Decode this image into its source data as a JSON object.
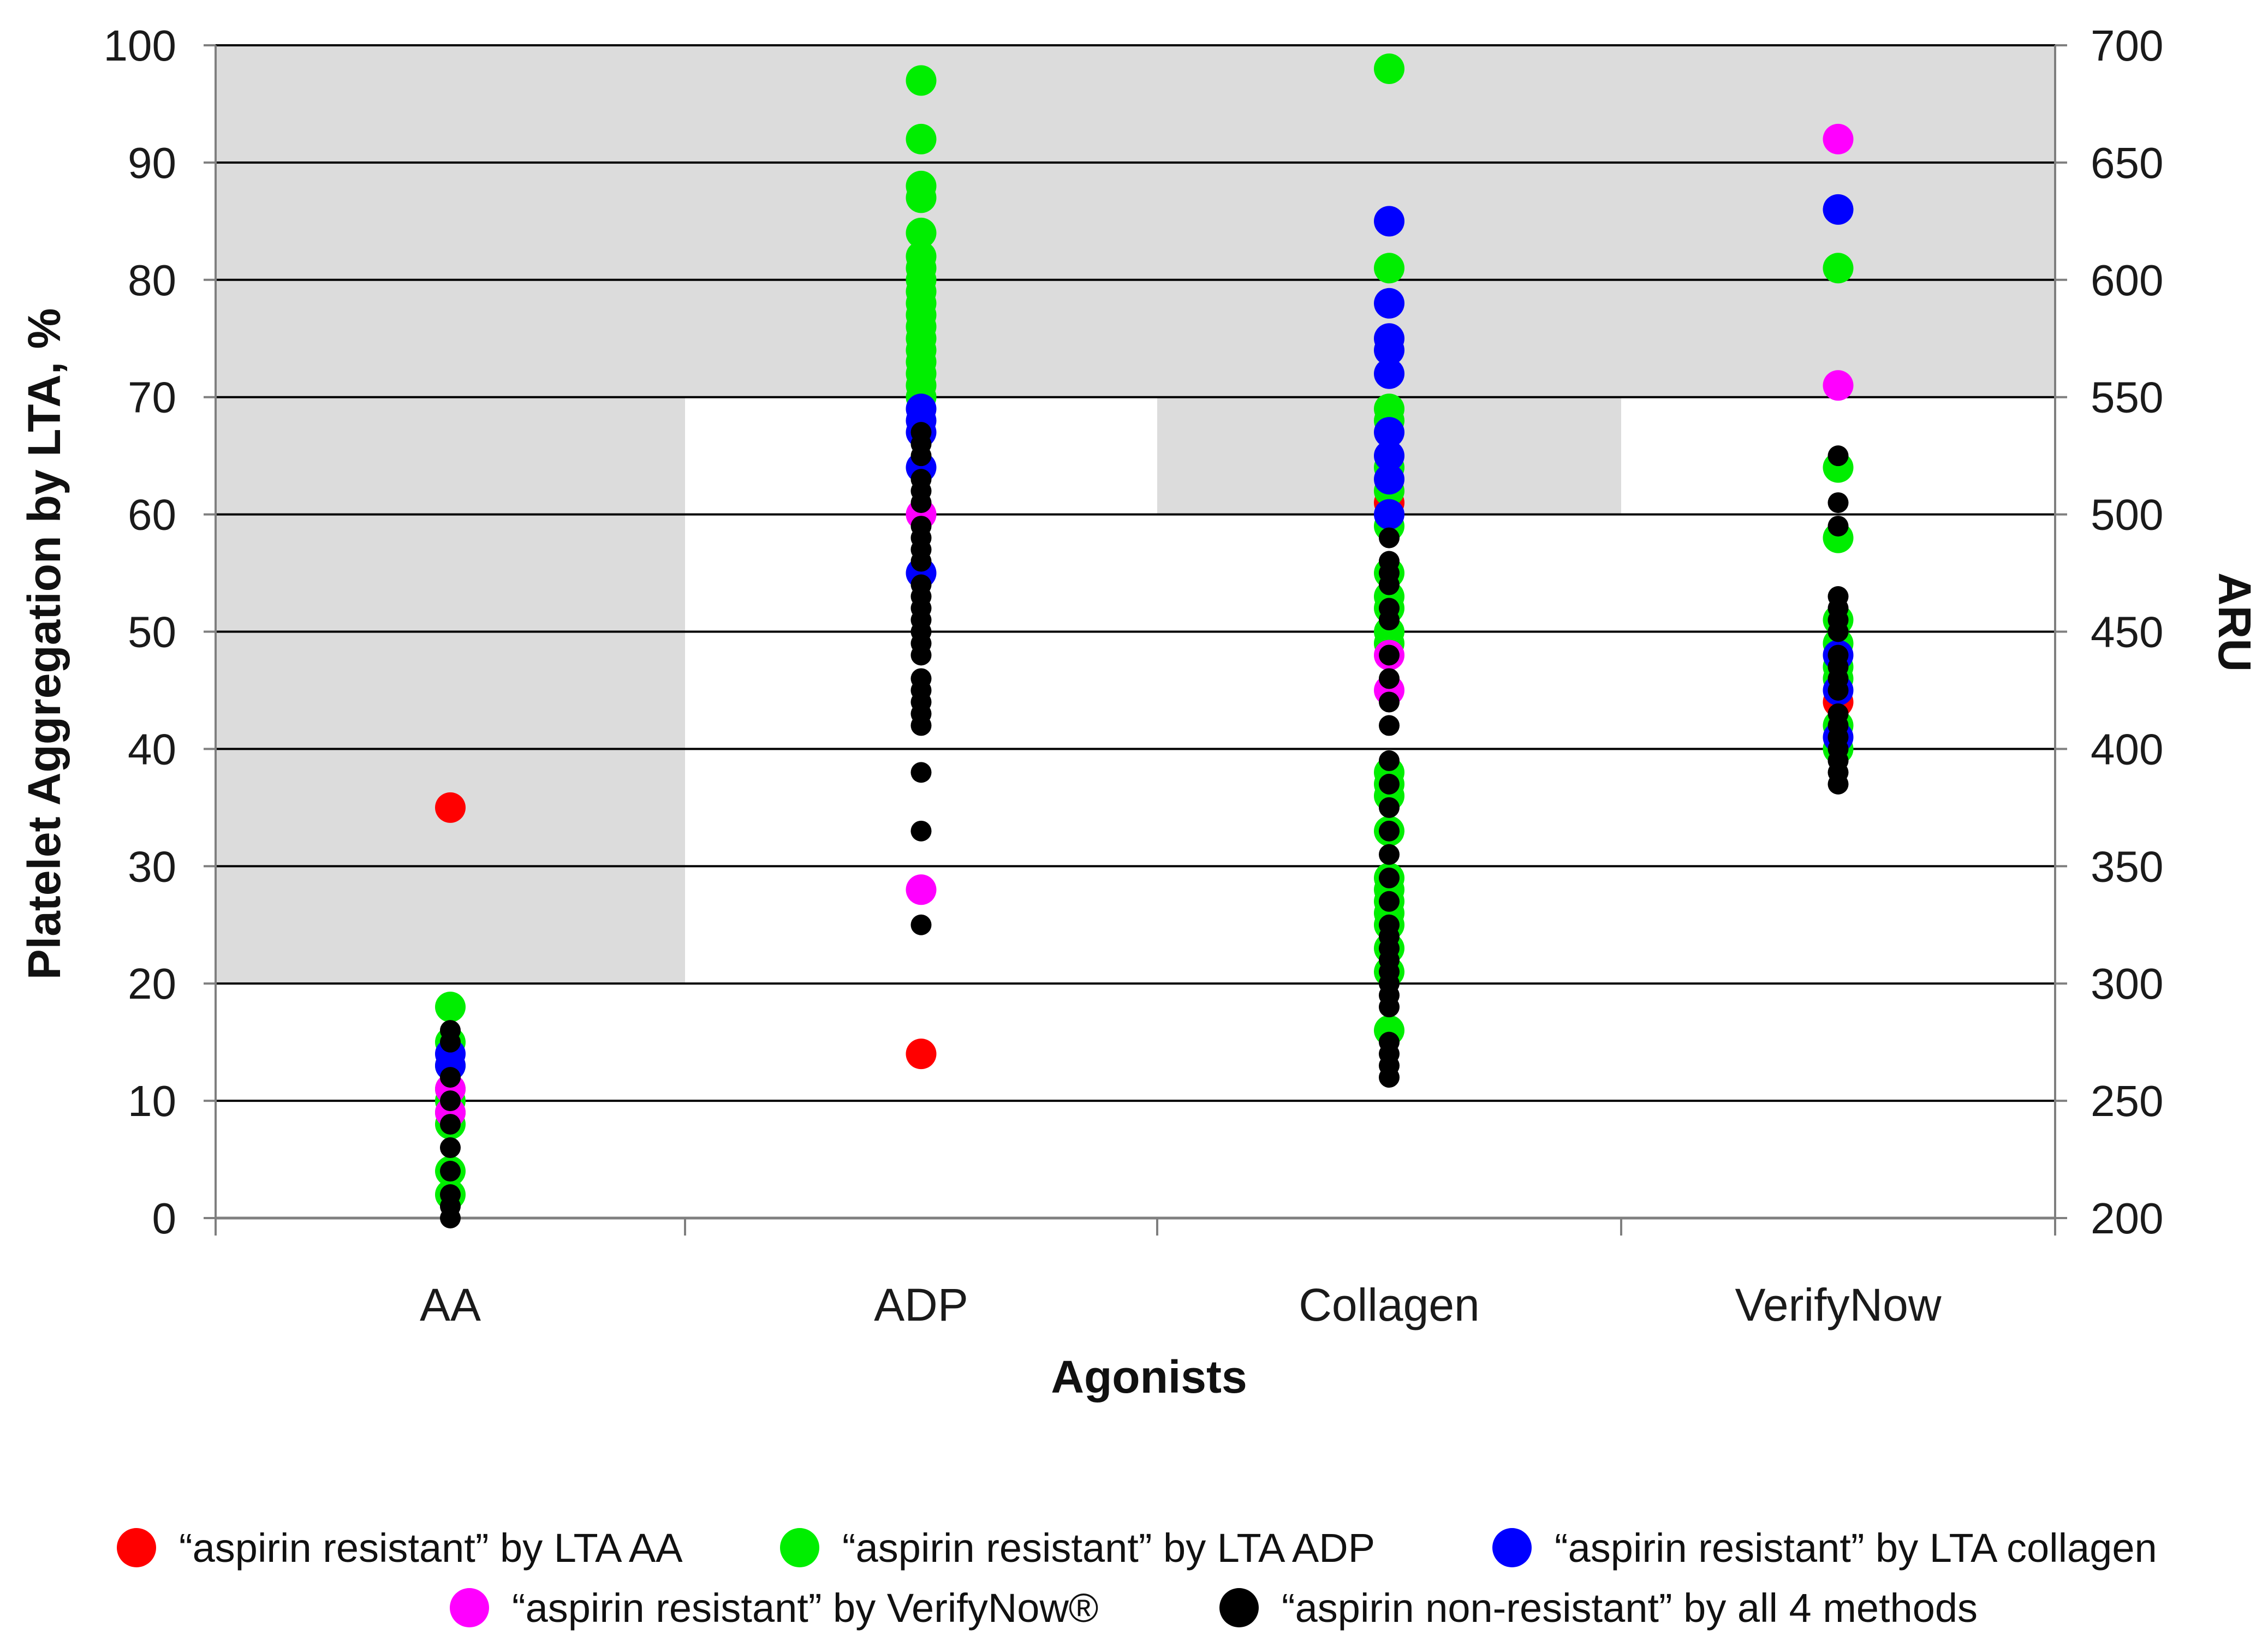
{
  "chart_data": {
    "type": "scatter",
    "title": "",
    "xlabel": "Agonists",
    "ylabel": "Platelet Aggregation by LTA, %",
    "y2label": "ARU",
    "categories": [
      "AA",
      "ADP",
      "Collagen",
      "VerifyNow"
    ],
    "ylim": [
      0,
      100
    ],
    "y2lim": [
      200,
      700
    ],
    "yticks": [
      0,
      10,
      20,
      30,
      40,
      50,
      60,
      70,
      80,
      90,
      100
    ],
    "y2ticks": [
      200,
      250,
      300,
      350,
      400,
      450,
      500,
      550,
      600,
      650,
      700
    ],
    "grid": true,
    "shaded_regions": [
      {
        "category": "AA",
        "from": 20,
        "to": 100
      },
      {
        "category": "ADP",
        "from": 70,
        "to": 100
      },
      {
        "category": "Collagen",
        "from": 60,
        "to": 100
      },
      {
        "category": "VerifyNow",
        "from": 70,
        "to": 100
      }
    ],
    "legend_position": "bottom",
    "series": [
      {
        "name": "“aspirin resistant” by LTA AA",
        "color": "#ff0000",
        "points": [
          {
            "category": "AA",
            "y": 35
          },
          {
            "category": "ADP",
            "y": 14
          },
          {
            "category": "Collagen",
            "y": 61
          },
          {
            "category": "VerifyNow",
            "y": 44
          }
        ]
      },
      {
        "name": "“aspirin resistant” by LTA ADP",
        "color": "#00ee00",
        "points": [
          {
            "category": "AA",
            "y": 18
          },
          {
            "category": "AA",
            "y": 15
          },
          {
            "category": "AA",
            "y": 13
          },
          {
            "category": "AA",
            "y": 11
          },
          {
            "category": "AA",
            "y": 10
          },
          {
            "category": "AA",
            "y": 9
          },
          {
            "category": "AA",
            "y": 8
          },
          {
            "category": "AA",
            "y": 4
          },
          {
            "category": "AA",
            "y": 2
          },
          {
            "category": "ADP",
            "y": 97
          },
          {
            "category": "ADP",
            "y": 92
          },
          {
            "category": "ADP",
            "y": 88
          },
          {
            "category": "ADP",
            "y": 87
          },
          {
            "category": "ADP",
            "y": 84
          },
          {
            "category": "ADP",
            "y": 82
          },
          {
            "category": "ADP",
            "y": 81
          },
          {
            "category": "ADP",
            "y": 80
          },
          {
            "category": "ADP",
            "y": 79
          },
          {
            "category": "ADP",
            "y": 78
          },
          {
            "category": "ADP",
            "y": 77
          },
          {
            "category": "ADP",
            "y": 76
          },
          {
            "category": "ADP",
            "y": 75
          },
          {
            "category": "ADP",
            "y": 74
          },
          {
            "category": "ADP",
            "y": 73
          },
          {
            "category": "ADP",
            "y": 72
          },
          {
            "category": "ADP",
            "y": 71
          },
          {
            "category": "ADP",
            "y": 70
          },
          {
            "category": "Collagen",
            "y": 98
          },
          {
            "category": "Collagen",
            "y": 81
          },
          {
            "category": "Collagen",
            "y": 69
          },
          {
            "category": "Collagen",
            "y": 68
          },
          {
            "category": "Collagen",
            "y": 64
          },
          {
            "category": "Collagen",
            "y": 62
          },
          {
            "category": "Collagen",
            "y": 59
          },
          {
            "category": "Collagen",
            "y": 55
          },
          {
            "category": "Collagen",
            "y": 53
          },
          {
            "category": "Collagen",
            "y": 52
          },
          {
            "category": "Collagen",
            "y": 50
          },
          {
            "category": "Collagen",
            "y": 49
          },
          {
            "category": "Collagen",
            "y": 38
          },
          {
            "category": "Collagen",
            "y": 37
          },
          {
            "category": "Collagen",
            "y": 36
          },
          {
            "category": "Collagen",
            "y": 33
          },
          {
            "category": "Collagen",
            "y": 29
          },
          {
            "category": "Collagen",
            "y": 28
          },
          {
            "category": "Collagen",
            "y": 27
          },
          {
            "category": "Collagen",
            "y": 26
          },
          {
            "category": "Collagen",
            "y": 25
          },
          {
            "category": "Collagen",
            "y": 23
          },
          {
            "category": "Collagen",
            "y": 21
          },
          {
            "category": "Collagen",
            "y": 16
          },
          {
            "category": "VerifyNow",
            "y": 81
          },
          {
            "category": "VerifyNow",
            "y": 64
          },
          {
            "category": "VerifyNow",
            "y": 58
          },
          {
            "category": "VerifyNow",
            "y": 51
          },
          {
            "category": "VerifyNow",
            "y": 49
          },
          {
            "category": "VerifyNow",
            "y": 47
          },
          {
            "category": "VerifyNow",
            "y": 46
          },
          {
            "category": "VerifyNow",
            "y": 42
          },
          {
            "category": "VerifyNow",
            "y": 40
          }
        ]
      },
      {
        "name": "“aspirin resistant” by LTA collagen",
        "color": "#0000ff",
        "points": [
          {
            "category": "AA",
            "y": 14
          },
          {
            "category": "AA",
            "y": 13
          },
          {
            "category": "ADP",
            "y": 69
          },
          {
            "category": "ADP",
            "y": 68
          },
          {
            "category": "ADP",
            "y": 67
          },
          {
            "category": "ADP",
            "y": 64
          },
          {
            "category": "ADP",
            "y": 55
          },
          {
            "category": "Collagen",
            "y": 85
          },
          {
            "category": "Collagen",
            "y": 78
          },
          {
            "category": "Collagen",
            "y": 75
          },
          {
            "category": "Collagen",
            "y": 74
          },
          {
            "category": "Collagen",
            "y": 72
          },
          {
            "category": "Collagen",
            "y": 67
          },
          {
            "category": "Collagen",
            "y": 65
          },
          {
            "category": "Collagen",
            "y": 63
          },
          {
            "category": "Collagen",
            "y": 60
          },
          {
            "category": "VerifyNow",
            "y": 86
          },
          {
            "category": "VerifyNow",
            "y": 48
          },
          {
            "category": "VerifyNow",
            "y": 45
          },
          {
            "category": "VerifyNow",
            "y": 41
          }
        ]
      },
      {
        "name": "“aspirin resistant” by VerifyNow®",
        "color": "#ff00ff",
        "points": [
          {
            "category": "AA",
            "y": 11
          },
          {
            "category": "AA",
            "y": 9
          },
          {
            "category": "ADP",
            "y": 60
          },
          {
            "category": "ADP",
            "y": 28
          },
          {
            "category": "Collagen",
            "y": 48
          },
          {
            "category": "Collagen",
            "y": 45
          },
          {
            "category": "VerifyNow",
            "y": 92
          },
          {
            "category": "VerifyNow",
            "y": 71
          }
        ]
      },
      {
        "name": "“aspirin non-resistant” by all 4 methods",
        "color": "#000000",
        "points": [
          {
            "category": "AA",
            "y": 16
          },
          {
            "category": "AA",
            "y": 15
          },
          {
            "category": "AA",
            "y": 12
          },
          {
            "category": "AA",
            "y": 10
          },
          {
            "category": "AA",
            "y": 8
          },
          {
            "category": "AA",
            "y": 6
          },
          {
            "category": "AA",
            "y": 4
          },
          {
            "category": "AA",
            "y": 2
          },
          {
            "category": "AA",
            "y": 1
          },
          {
            "category": "AA",
            "y": 0
          },
          {
            "category": "ADP",
            "y": 67
          },
          {
            "category": "ADP",
            "y": 66
          },
          {
            "category": "ADP",
            "y": 65
          },
          {
            "category": "ADP",
            "y": 63
          },
          {
            "category": "ADP",
            "y": 62
          },
          {
            "category": "ADP",
            "y": 61
          },
          {
            "category": "ADP",
            "y": 59
          },
          {
            "category": "ADP",
            "y": 58
          },
          {
            "category": "ADP",
            "y": 57
          },
          {
            "category": "ADP",
            "y": 56
          },
          {
            "category": "ADP",
            "y": 54
          },
          {
            "category": "ADP",
            "y": 53
          },
          {
            "category": "ADP",
            "y": 52
          },
          {
            "category": "ADP",
            "y": 51
          },
          {
            "category": "ADP",
            "y": 50
          },
          {
            "category": "ADP",
            "y": 49
          },
          {
            "category": "ADP",
            "y": 48
          },
          {
            "category": "ADP",
            "y": 46
          },
          {
            "category": "ADP",
            "y": 45
          },
          {
            "category": "ADP",
            "y": 44
          },
          {
            "category": "ADP",
            "y": 43
          },
          {
            "category": "ADP",
            "y": 42
          },
          {
            "category": "ADP",
            "y": 38
          },
          {
            "category": "ADP",
            "y": 33
          },
          {
            "category": "ADP",
            "y": 25
          },
          {
            "category": "Collagen",
            "y": 58
          },
          {
            "category": "Collagen",
            "y": 56
          },
          {
            "category": "Collagen",
            "y": 55
          },
          {
            "category": "Collagen",
            "y": 54
          },
          {
            "category": "Collagen",
            "y": 52
          },
          {
            "category": "Collagen",
            "y": 51
          },
          {
            "category": "Collagen",
            "y": 48
          },
          {
            "category": "Collagen",
            "y": 46
          },
          {
            "category": "Collagen",
            "y": 44
          },
          {
            "category": "Collagen",
            "y": 42
          },
          {
            "category": "Collagen",
            "y": 39
          },
          {
            "category": "Collagen",
            "y": 37
          },
          {
            "category": "Collagen",
            "y": 35
          },
          {
            "category": "Collagen",
            "y": 33
          },
          {
            "category": "Collagen",
            "y": 31
          },
          {
            "category": "Collagen",
            "y": 29
          },
          {
            "category": "Collagen",
            "y": 27
          },
          {
            "category": "Collagen",
            "y": 25
          },
          {
            "category": "Collagen",
            "y": 24
          },
          {
            "category": "Collagen",
            "y": 23
          },
          {
            "category": "Collagen",
            "y": 22
          },
          {
            "category": "Collagen",
            "y": 21
          },
          {
            "category": "Collagen",
            "y": 20
          },
          {
            "category": "Collagen",
            "y": 19
          },
          {
            "category": "Collagen",
            "y": 18
          },
          {
            "category": "Collagen",
            "y": 15
          },
          {
            "category": "Collagen",
            "y": 14
          },
          {
            "category": "Collagen",
            "y": 13
          },
          {
            "category": "Collagen",
            "y": 12
          },
          {
            "category": "VerifyNow",
            "y": 65
          },
          {
            "category": "VerifyNow",
            "y": 61
          },
          {
            "category": "VerifyNow",
            "y": 59
          },
          {
            "category": "VerifyNow",
            "y": 53
          },
          {
            "category": "VerifyNow",
            "y": 52
          },
          {
            "category": "VerifyNow",
            "y": 51
          },
          {
            "category": "VerifyNow",
            "y": 50
          },
          {
            "category": "VerifyNow",
            "y": 48
          },
          {
            "category": "VerifyNow",
            "y": 47
          },
          {
            "category": "VerifyNow",
            "y": 46
          },
          {
            "category": "VerifyNow",
            "y": 45
          },
          {
            "category": "VerifyNow",
            "y": 43
          },
          {
            "category": "VerifyNow",
            "y": 42
          },
          {
            "category": "VerifyNow",
            "y": 41
          },
          {
            "category": "VerifyNow",
            "y": 40
          },
          {
            "category": "VerifyNow",
            "y": 39
          },
          {
            "category": "VerifyNow",
            "y": 38
          },
          {
            "category": "VerifyNow",
            "y": 37
          }
        ]
      }
    ]
  }
}
